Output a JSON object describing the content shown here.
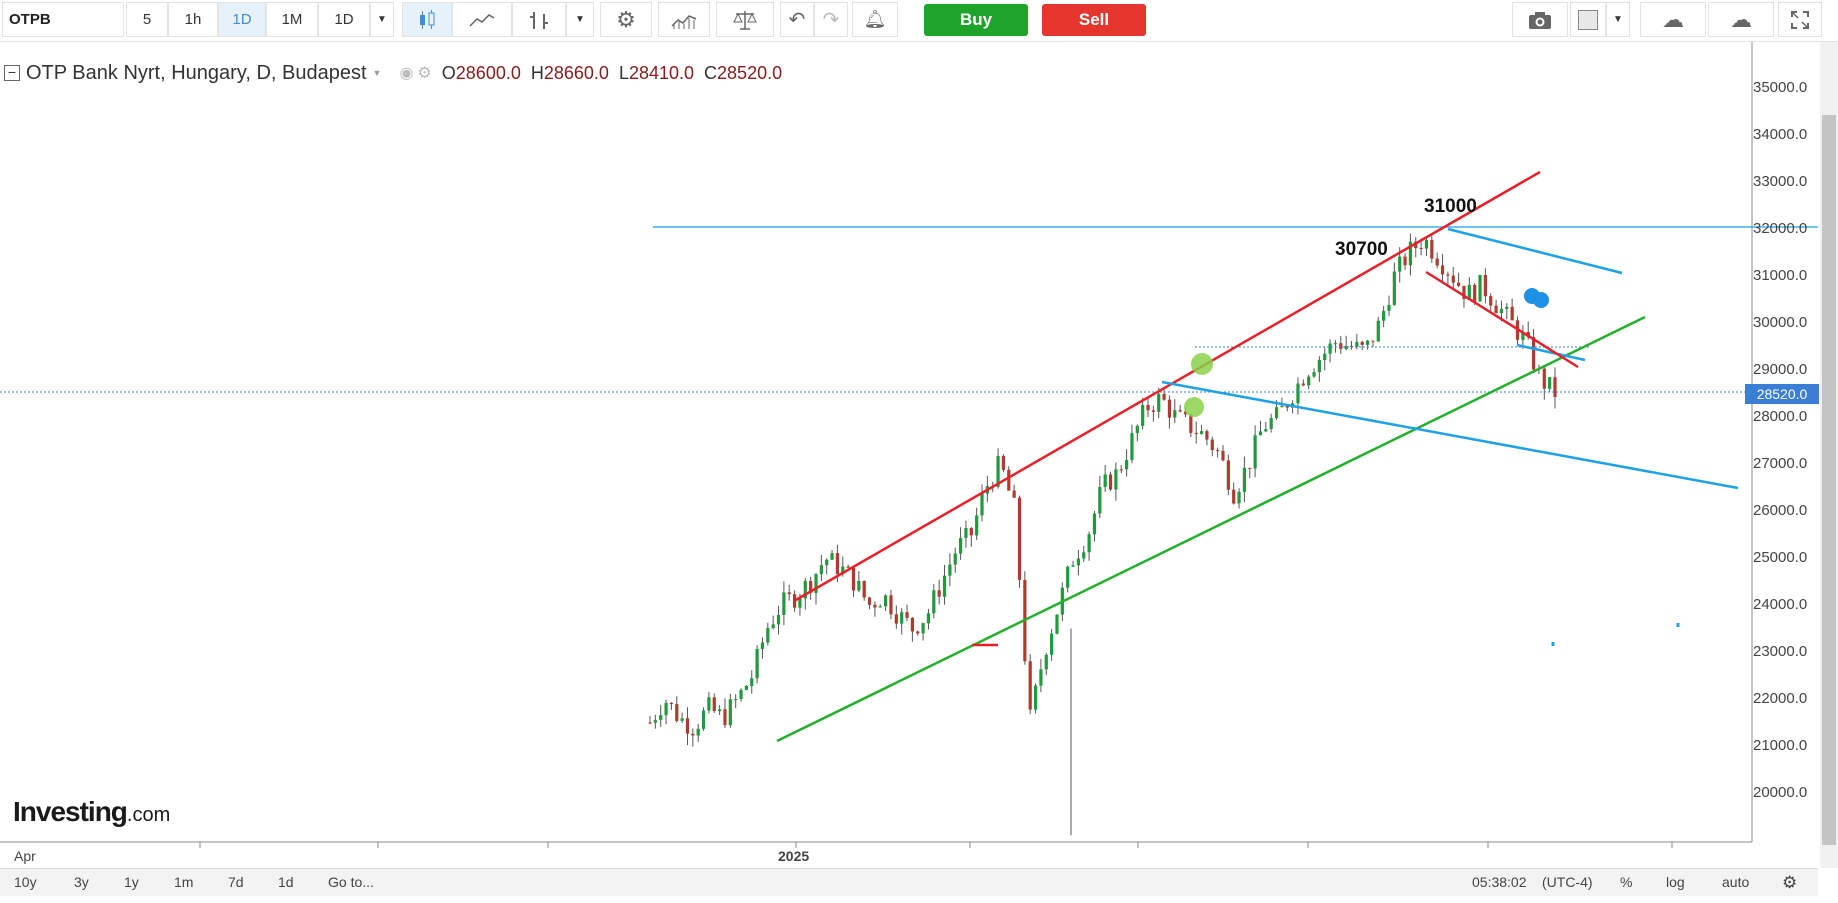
{
  "toolbar": {
    "symbol": "OTPB",
    "intervals": [
      "5",
      "1h",
      "1D",
      "1M",
      "1D"
    ],
    "active_interval": "1D",
    "buy_label": "Buy",
    "sell_label": "Sell"
  },
  "legend": {
    "title": "OTP Bank Nyrt, Hungary, D, Budapest",
    "open_label": "O",
    "open": "28600.0",
    "high_label": "H",
    "high": "28660.0",
    "low_label": "L",
    "low": "28410.0",
    "close_label": "C",
    "close": "28520.0"
  },
  "annotations": {
    "peak_1": "30700",
    "peak_2": "31000"
  },
  "price_axis": {
    "ticks": [
      "35000.0",
      "34000.0",
      "33000.0",
      "32000.0",
      "31000.0",
      "30000.0",
      "29000.0",
      "28000.0",
      "27000.0",
      "26000.0",
      "25000.0",
      "24000.0",
      "23000.0",
      "22000.0",
      "21000.0",
      "20000.0"
    ],
    "current_price": "28520.0"
  },
  "time_axis": {
    "labels": [
      "Apr",
      "2025"
    ]
  },
  "footer": {
    "ranges": [
      "10y",
      "3y",
      "1y",
      "1m",
      "7d",
      "1d"
    ],
    "goto": "Go to...",
    "clock": "05:38:02",
    "timezone": "(UTC-4)",
    "percent": "%",
    "log": "log",
    "auto": "auto"
  },
  "watermark": {
    "brand": "Investing",
    "suffix": ".com"
  },
  "colors": {
    "up": "#1f9a3d",
    "down": "#b03a2e",
    "red_line": "#e8202a",
    "blue_line": "#1ea1e6",
    "green_line": "#22b02b",
    "accent": "#3a7fd5"
  },
  "chart_data": {
    "type": "candlestick",
    "y_range": [
      19000,
      35500
    ],
    "current_price": 28520,
    "closes_approx": [
      21500,
      22000,
      21600,
      21400,
      21800,
      21600,
      22000,
      22500,
      23500,
      24000,
      24200,
      24500,
      25000,
      24800,
      24500,
      24000,
      24200,
      23800,
      23500,
      23800,
      24500,
      25200,
      25500,
      26500,
      27000,
      26000,
      21500,
      23000,
      24000,
      25000,
      25500,
      26500,
      26800,
      27500,
      28200,
      28400,
      28000,
      27800,
      27600,
      27200,
      26400,
      27000,
      27800,
      28000,
      28500,
      29000,
      29300,
      29600,
      29500,
      29400,
      30000,
      31000,
      31500,
      31800,
      31400,
      31000,
      30600,
      30800,
      30400,
      30000,
      29600,
      28800,
      28520
    ]
  }
}
